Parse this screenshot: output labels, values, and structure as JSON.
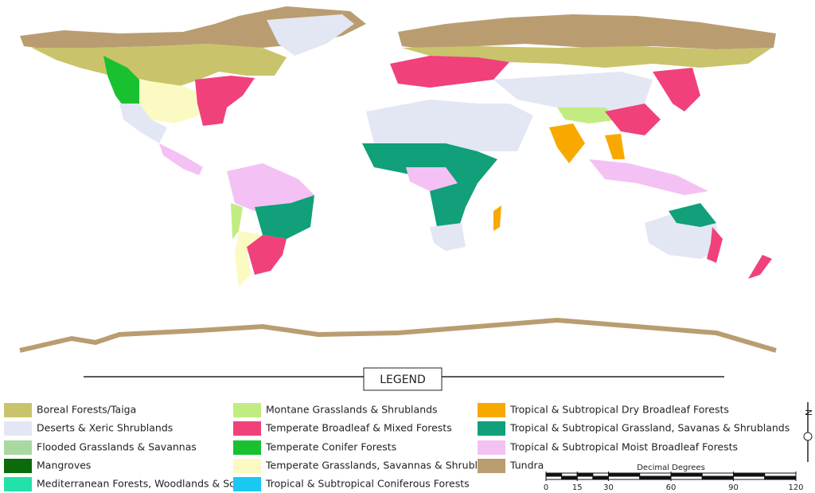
{
  "legend": {
    "title": "LEGEND",
    "items": [
      {
        "label": "Boreal Forests/Taiga",
        "color": "#c9c46b"
      },
      {
        "label": "Deserts & Xeric Shrublands",
        "color": "#e3e7f3"
      },
      {
        "label": "Flooded Grasslands & Savannas",
        "color": "#a9d9a1"
      },
      {
        "label": "Mangroves",
        "color": "#0b6b0b"
      },
      {
        "label": "Mediterranean Forests, Woodlands & Scrub",
        "color": "#22e2aa"
      },
      {
        "label": "Montane Grasslands & Shrublands",
        "color": "#c2ec82"
      },
      {
        "label": "Temperate Broadleaf & Mixed Forests",
        "color": "#f0417b"
      },
      {
        "label": "Temperate Conifer Forests",
        "color": "#19c131"
      },
      {
        "label": "Temperate Grasslands, Savannas & Shrublands",
        "color": "#fafac2"
      },
      {
        "label": "Tropical & Subtropical Coniferous Forests",
        "color": "#19c9f1"
      },
      {
        "label": "Tropical & Subtropical Dry Broadleaf Forests",
        "color": "#f8a900"
      },
      {
        "label": "Tropical & Subtropical Grassland, Savanas & Shrublands",
        "color": "#11a079"
      },
      {
        "label": "Tropical & Subtropical Moist Broadleaf Forests",
        "color": "#f4c1f4"
      },
      {
        "label": "Tundra",
        "color": "#b99d71"
      }
    ]
  },
  "scale": {
    "title": "Decimal Degrees",
    "ticks": [
      0,
      15,
      30,
      60,
      90,
      120
    ]
  },
  "north": "N"
}
